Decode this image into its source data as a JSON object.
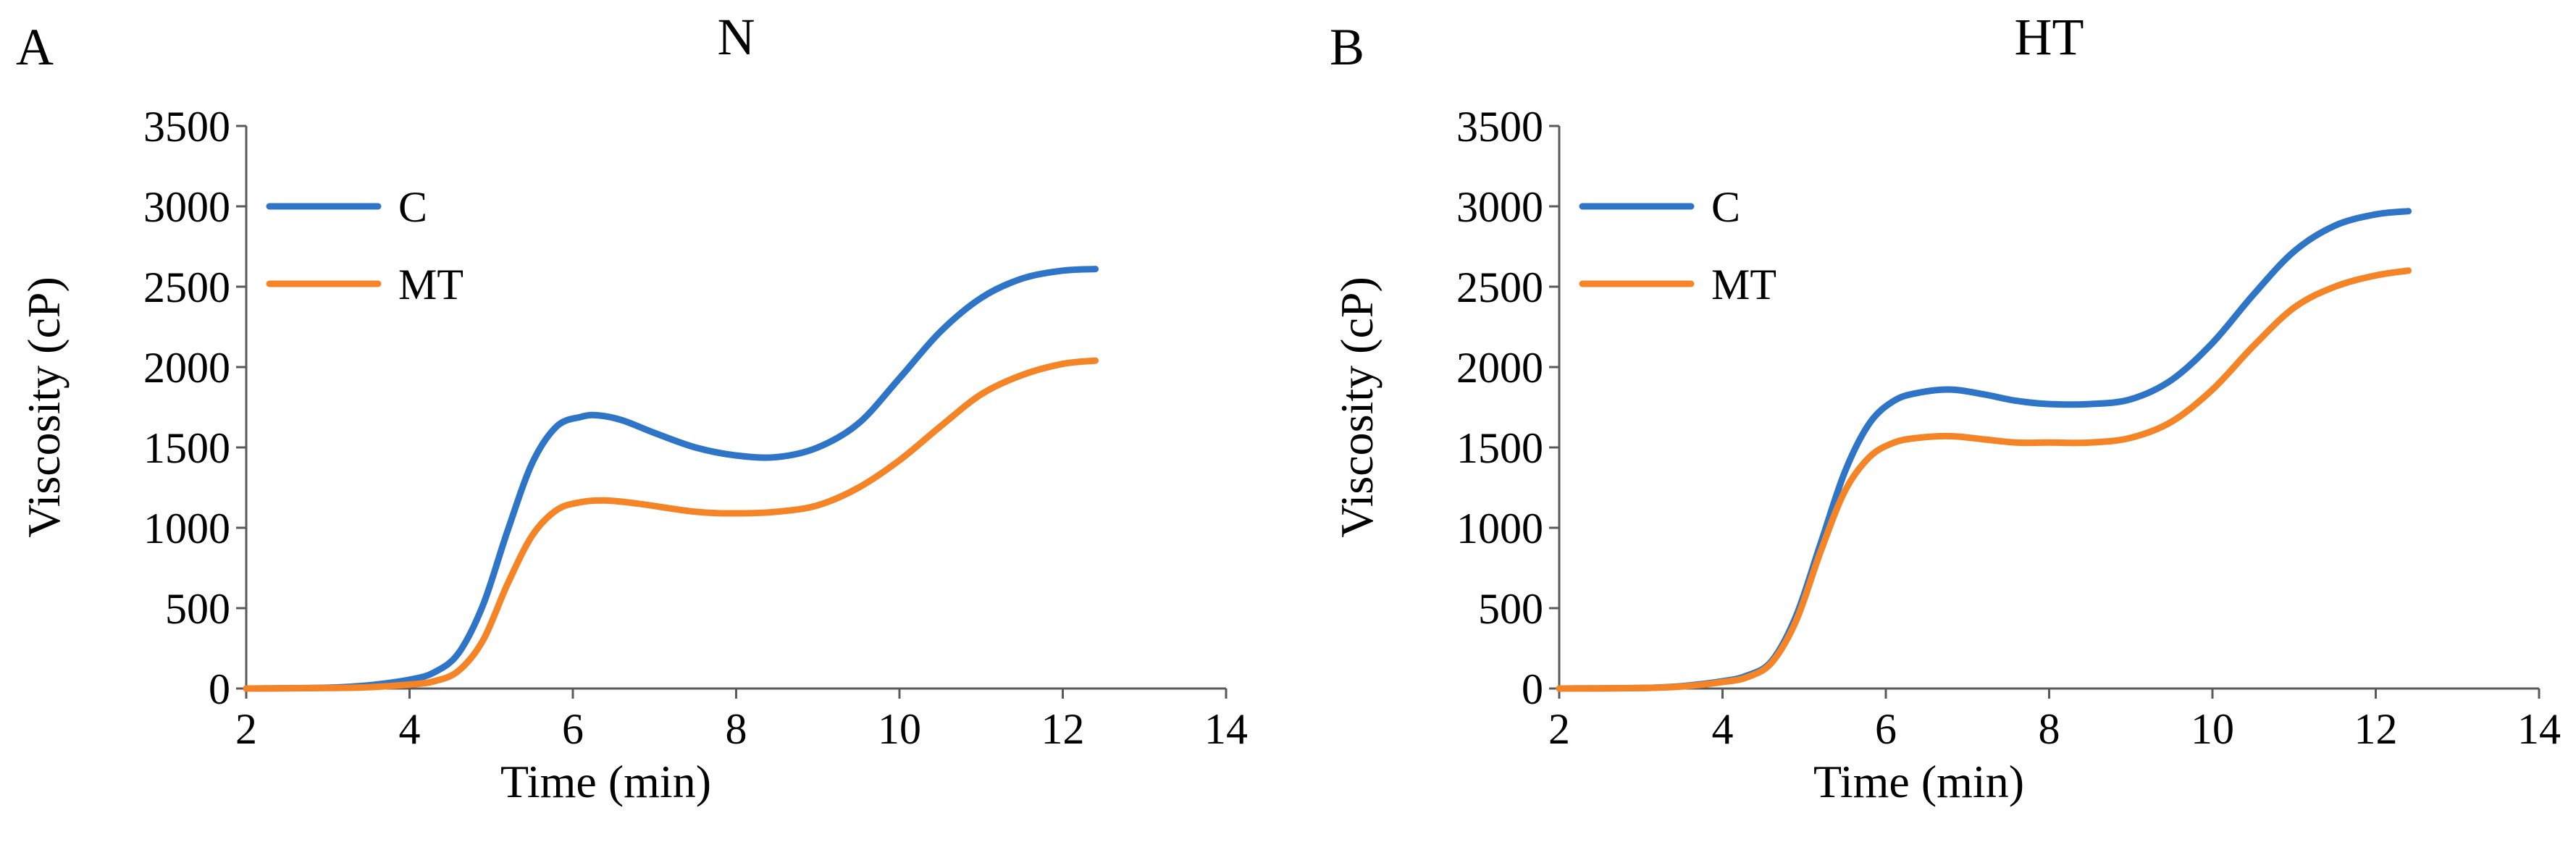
{
  "chart_data": [
    {
      "type": "line",
      "panel_label": "A",
      "title": "N",
      "xlabel": "Time (min)",
      "ylabel": "Viscosity (cP)",
      "xlim": [
        2,
        14
      ],
      "ylim": [
        0,
        3500
      ],
      "x_ticks": [
        2,
        4,
        6,
        8,
        10,
        12,
        14
      ],
      "y_ticks": [
        0,
        500,
        1000,
        1500,
        2000,
        2500,
        3000,
        3500
      ],
      "grid": false,
      "legend_position": "top-left",
      "series": [
        {
          "name": "C",
          "color": "#2E75C8",
          "x": [
            2,
            3,
            3.5,
            4,
            4.3,
            4.6,
            4.9,
            5.2,
            5.5,
            5.8,
            6.1,
            6.3,
            6.6,
            7,
            7.5,
            8,
            8.5,
            9,
            9.5,
            10,
            10.5,
            11,
            11.5,
            12,
            12.4
          ],
          "y": [
            0,
            5,
            20,
            55,
            100,
            220,
            520,
            980,
            1400,
            1630,
            1690,
            1700,
            1670,
            1590,
            1500,
            1450,
            1440,
            1500,
            1650,
            1930,
            2220,
            2430,
            2550,
            2600,
            2610
          ]
        },
        {
          "name": "MT",
          "color": "#F58427",
          "x": [
            2,
            3,
            3.5,
            4,
            4.3,
            4.6,
            4.9,
            5.2,
            5.5,
            5.8,
            6.1,
            6.4,
            6.8,
            7.5,
            8,
            8.5,
            9,
            9.5,
            10,
            10.5,
            11,
            11.5,
            12,
            12.4
          ],
          "y": [
            0,
            3,
            8,
            25,
            45,
            110,
            300,
            650,
            950,
            1110,
            1160,
            1170,
            1150,
            1100,
            1090,
            1100,
            1140,
            1250,
            1420,
            1630,
            1830,
            1950,
            2020,
            2040
          ]
        }
      ]
    },
    {
      "type": "line",
      "panel_label": "B",
      "title": "HT",
      "xlabel": "Time (min)",
      "ylabel": "Viscosity (cP)",
      "xlim": [
        2,
        14
      ],
      "ylim": [
        0,
        3500
      ],
      "x_ticks": [
        2,
        4,
        6,
        8,
        10,
        12,
        14
      ],
      "y_ticks": [
        0,
        500,
        1000,
        1500,
        2000,
        2500,
        3000,
        3500
      ],
      "grid": false,
      "legend_position": "top-left",
      "series": [
        {
          "name": "C",
          "color": "#2E75C8",
          "x": [
            2,
            3,
            3.5,
            4,
            4.3,
            4.6,
            4.9,
            5.2,
            5.5,
            5.8,
            6.1,
            6.4,
            6.8,
            7.2,
            7.6,
            8,
            8.5,
            9,
            9.5,
            10,
            10.5,
            11,
            11.5,
            12,
            12.4
          ],
          "y": [
            0,
            3,
            15,
            45,
            80,
            170,
            450,
            900,
            1350,
            1650,
            1790,
            1840,
            1860,
            1830,
            1790,
            1770,
            1770,
            1800,
            1920,
            2150,
            2450,
            2720,
            2880,
            2950,
            2970
          ]
        },
        {
          "name": "MT",
          "color": "#F58427",
          "x": [
            2,
            3,
            3.5,
            4,
            4.3,
            4.6,
            4.9,
            5.2,
            5.5,
            5.8,
            6.1,
            6.4,
            6.8,
            7.2,
            7.6,
            8,
            8.5,
            9,
            9.5,
            10,
            10.5,
            11,
            11.5,
            12,
            12.4
          ],
          "y": [
            0,
            3,
            12,
            40,
            70,
            160,
            420,
            850,
            1230,
            1440,
            1530,
            1560,
            1570,
            1550,
            1530,
            1530,
            1530,
            1560,
            1660,
            1860,
            2130,
            2370,
            2500,
            2570,
            2600
          ]
        }
      ]
    }
  ]
}
